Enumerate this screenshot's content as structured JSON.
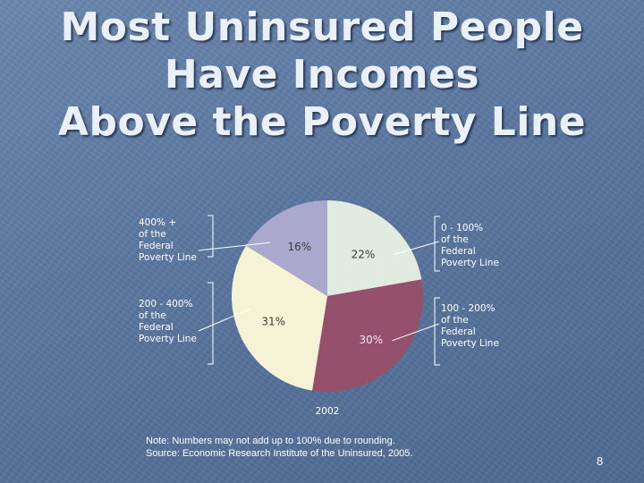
{
  "slide": {
    "title_lines": [
      "Most Uninsured People",
      "Have Incomes",
      "Above the Poverty Line"
    ],
    "note_lines": [
      "Note: Numbers may not add up to 100% due to rounding.",
      "Source:  Economic Research Institute of the Uninsured, 2005."
    ],
    "page_number": "8"
  },
  "chart_data": {
    "type": "pie",
    "title": "",
    "caption": "2002",
    "slices": [
      {
        "label": [
          "0 - 100%",
          "of the",
          "Federal",
          "Poverty Line"
        ],
        "value": 22,
        "value_label": "22%",
        "color": "#e2ebe0"
      },
      {
        "label": [
          "100 - 200%",
          "of the",
          "Federal",
          "Poverty Line"
        ],
        "value": 30,
        "value_label": "30%",
        "color": "#95506c"
      },
      {
        "label": [
          "200 - 400%",
          "of the",
          "Federal",
          "Poverty Line"
        ],
        "value": 31,
        "value_label": "31%",
        "color": "#f6f2d6"
      },
      {
        "label": [
          "400% +",
          "of the",
          "Federal",
          "Poverty Line"
        ],
        "value": 16,
        "value_label": "16%",
        "color": "#aaa8cc"
      }
    ],
    "start_angle_deg": 0,
    "direction": "clockwise"
  }
}
